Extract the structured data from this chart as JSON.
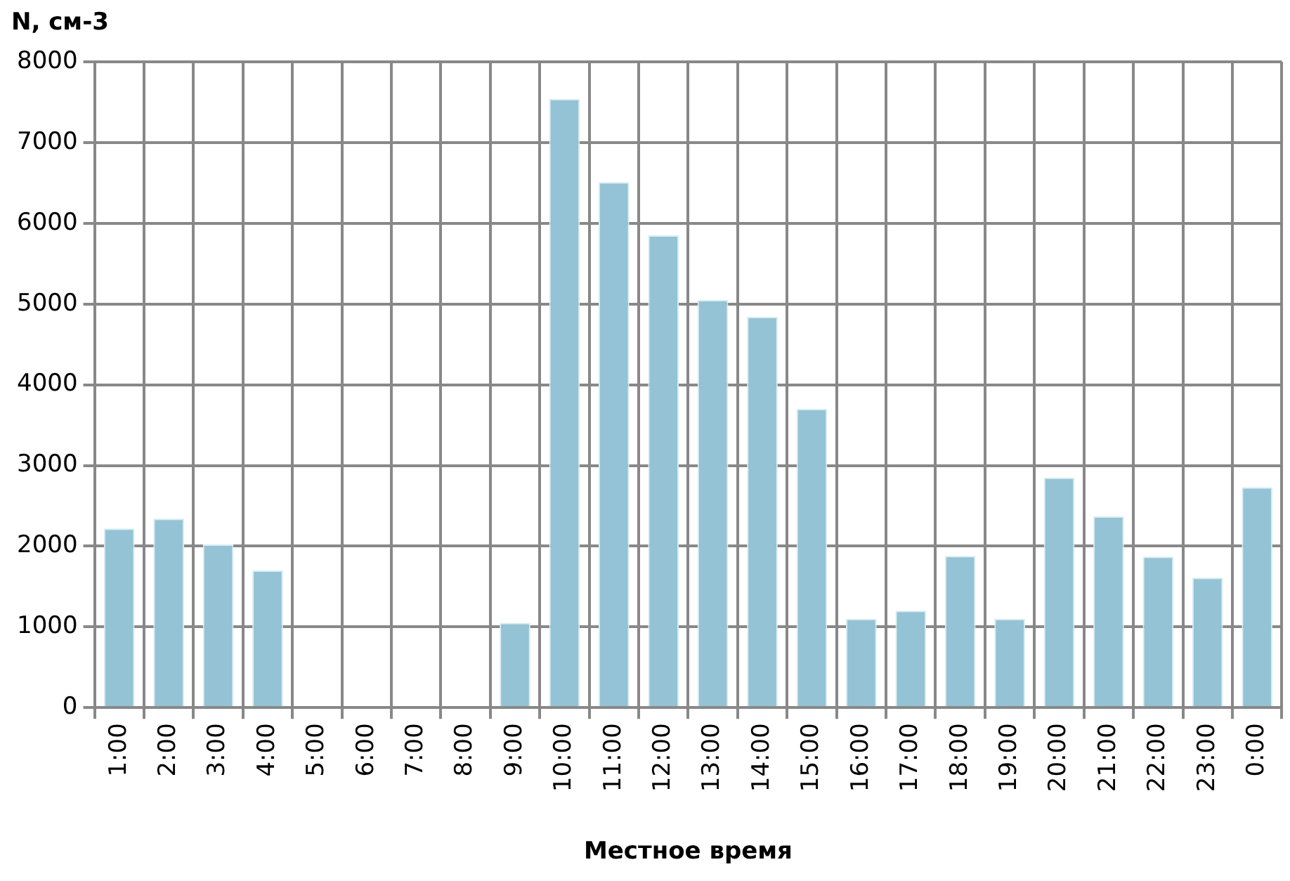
{
  "chart_data": {
    "type": "bar",
    "ylabel": "N, см-3",
    "xlabel": "Местное время",
    "categories": [
      "1:00",
      "2:00",
      "3:00",
      "4:00",
      "5:00",
      "6:00",
      "7:00",
      "8:00",
      "9:00",
      "10:00",
      "11:00",
      "12:00",
      "13:00",
      "14:00",
      "15:00",
      "16:00",
      "17:00",
      "18:00",
      "19:00",
      "20:00",
      "21:00",
      "22:00",
      "23:00",
      "0:00"
    ],
    "values": [
      2220,
      2340,
      2020,
      1700,
      0,
      0,
      0,
      0,
      1050,
      7540,
      6510,
      5850,
      5050,
      4840,
      3700,
      1100,
      1200,
      1880,
      1100,
      2850,
      2370,
      1870,
      1610,
      2730
    ],
    "color": "#93c3d4",
    "ylim": [
      0,
      8000
    ],
    "yticks": [
      0,
      1000,
      2000,
      3000,
      4000,
      5000,
      6000,
      7000,
      8000
    ],
    "grid": true,
    "legend": false
  }
}
